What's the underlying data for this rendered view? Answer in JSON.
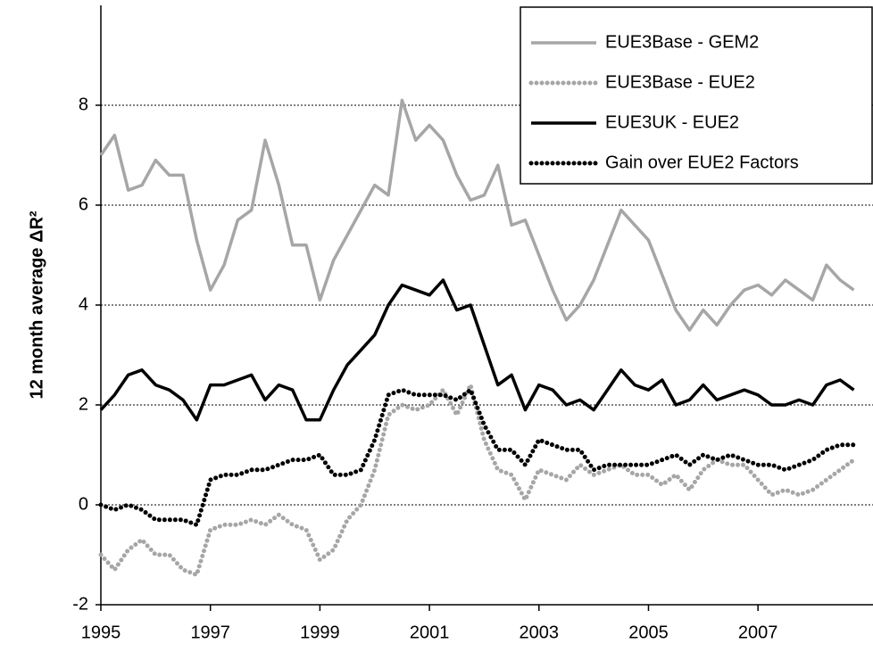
{
  "chart_data": {
    "type": "line",
    "y_label": "12 month average ΔR²",
    "x": [
      1995.0,
      1995.25,
      1995.5,
      1995.75,
      1996.0,
      1996.25,
      1996.5,
      1996.75,
      1997.0,
      1997.25,
      1997.5,
      1997.75,
      1998.0,
      1998.25,
      1998.5,
      1998.75,
      1999.0,
      1999.25,
      1999.5,
      1999.75,
      2000.0,
      2000.25,
      2000.5,
      2000.75,
      2001.0,
      2001.25,
      2001.5,
      2001.75,
      2002.0,
      2002.25,
      2002.5,
      2002.75,
      2003.0,
      2003.25,
      2003.5,
      2003.75,
      2004.0,
      2004.25,
      2004.5,
      2004.75,
      2005.0,
      2005.25,
      2005.5,
      2005.75,
      2006.0,
      2006.25,
      2006.5,
      2006.75,
      2007.0,
      2007.25,
      2007.5,
      2007.75,
      2008.0,
      2008.25,
      2008.5,
      2008.75
    ],
    "series": [
      {
        "name": "EUE3Base - GEM2",
        "color": "#a6a6a6",
        "linestyle": "solid",
        "values": [
          7.0,
          7.4,
          6.3,
          6.4,
          6.9,
          6.6,
          6.6,
          5.3,
          4.3,
          4.8,
          5.7,
          5.9,
          7.3,
          6.4,
          5.2,
          5.2,
          4.1,
          4.9,
          5.4,
          5.9,
          6.4,
          6.2,
          8.1,
          7.3,
          7.6,
          7.3,
          6.6,
          6.1,
          6.2,
          6.8,
          5.6,
          5.7,
          5.0,
          4.3,
          3.7,
          4.0,
          4.5,
          5.2,
          5.9,
          5.6,
          5.3,
          4.6,
          3.9,
          3.5,
          3.9,
          3.6,
          4.0,
          4.3,
          4.4,
          4.2,
          4.5,
          4.3,
          4.1,
          4.8,
          4.5,
          4.3
        ]
      },
      {
        "name": "EUE3Base - EUE2",
        "color": "#a6a6a6",
        "linestyle": "dotted",
        "values": [
          -1.0,
          -1.3,
          -0.9,
          -0.7,
          -1.0,
          -1.0,
          -1.3,
          -1.4,
          -0.5,
          -0.4,
          -0.4,
          -0.3,
          -0.4,
          -0.2,
          -0.4,
          -0.5,
          -1.1,
          -0.9,
          -0.3,
          0.0,
          0.7,
          1.8,
          2.0,
          1.9,
          2.0,
          2.3,
          1.8,
          2.4,
          1.3,
          0.7,
          0.6,
          0.1,
          0.7,
          0.6,
          0.5,
          0.8,
          0.6,
          0.7,
          0.8,
          0.6,
          0.6,
          0.4,
          0.6,
          0.3,
          0.7,
          0.9,
          0.8,
          0.8,
          0.5,
          0.2,
          0.3,
          0.2,
          0.3,
          0.5,
          0.7,
          0.9
        ]
      },
      {
        "name": "EUE3UK - EUE2",
        "color": "#000000",
        "linestyle": "solid",
        "values": [
          1.9,
          2.2,
          2.6,
          2.7,
          2.4,
          2.3,
          2.1,
          1.7,
          2.4,
          2.4,
          2.5,
          2.6,
          2.1,
          2.4,
          2.3,
          1.7,
          1.7,
          2.3,
          2.8,
          3.1,
          3.4,
          4.0,
          4.4,
          4.3,
          4.2,
          4.5,
          3.9,
          4.0,
          3.2,
          2.4,
          2.6,
          1.9,
          2.4,
          2.3,
          2.0,
          2.1,
          1.9,
          2.3,
          2.7,
          2.4,
          2.3,
          2.5,
          2.0,
          2.1,
          2.4,
          2.1,
          2.2,
          2.3,
          2.2,
          2.0,
          2.0,
          2.1,
          2.0,
          2.4,
          2.5,
          2.3
        ]
      },
      {
        "name": "Gain over EUE2 Factors",
        "color": "#000000",
        "linestyle": "dotted",
        "values": [
          0.0,
          -0.1,
          0.0,
          -0.1,
          -0.3,
          -0.3,
          -0.3,
          -0.4,
          0.5,
          0.6,
          0.6,
          0.7,
          0.7,
          0.8,
          0.9,
          0.9,
          1.0,
          0.6,
          0.6,
          0.7,
          1.3,
          2.2,
          2.3,
          2.2,
          2.2,
          2.2,
          2.1,
          2.3,
          1.6,
          1.1,
          1.1,
          0.8,
          1.3,
          1.2,
          1.1,
          1.1,
          0.7,
          0.8,
          0.8,
          0.8,
          0.8,
          0.9,
          1.0,
          0.8,
          1.0,
          0.9,
          1.0,
          0.9,
          0.8,
          0.8,
          0.7,
          0.8,
          0.9,
          1.1,
          1.2,
          1.2
        ]
      }
    ],
    "xlim": [
      1995,
      2009.1
    ],
    "xticks": [
      1995,
      1997,
      1999,
      2001,
      2003,
      2005,
      2007
    ],
    "ylim": [
      -2,
      10
    ],
    "yticks": [
      -2,
      0,
      2,
      4,
      6,
      8
    ],
    "grid": true,
    "legend": "upper right"
  }
}
